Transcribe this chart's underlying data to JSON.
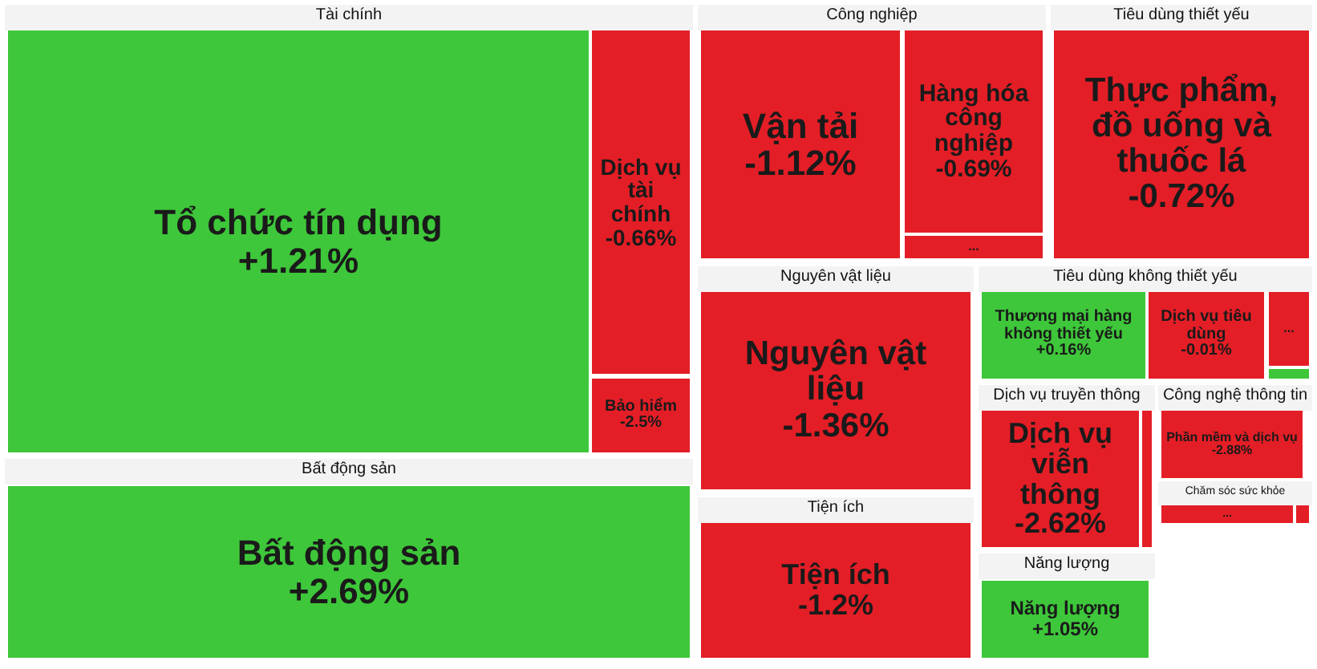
{
  "chart_data": [
    {
      "type": "other",
      "title": "Tài chính",
      "categories": [
        "Tổ chức tín dụng",
        "Dịch vụ tài chính",
        "Bảo hiểm"
      ],
      "values": [
        1.21,
        -0.66,
        -2.5
      ],
      "value_labels": [
        "+1.21%",
        "-0.66%",
        "-2.5%"
      ],
      "colors": [
        "#3ec73a",
        "#e41e26",
        "#e41e26"
      ]
    },
    {
      "type": "other",
      "title": "Bất động sản",
      "categories": [
        "Bất động sản"
      ],
      "values": [
        2.69
      ],
      "value_labels": [
        "+2.69%"
      ],
      "colors": [
        "#3ec73a"
      ]
    },
    {
      "type": "other",
      "title": "Công nghiệp",
      "categories": [
        "Vận tải",
        "Hàng hóa công nghiệp",
        "..."
      ],
      "values": [
        -1.12,
        -0.69,
        null
      ],
      "value_labels": [
        "-1.12%",
        "-0.69%",
        null
      ],
      "colors": [
        "#e41e26",
        "#e41e26",
        "#e41e26"
      ]
    },
    {
      "type": "other",
      "title": "Tiêu dùng thiết yếu",
      "categories": [
        "Thực phẩm, đồ uống và thuốc lá"
      ],
      "values": [
        -0.72
      ],
      "value_labels": [
        "-0.72%"
      ],
      "colors": [
        "#e41e26"
      ]
    },
    {
      "type": "other",
      "title": "Nguyên vật liệu",
      "categories": [
        "Nguyên vật liệu"
      ],
      "values": [
        -1.36
      ],
      "value_labels": [
        "-1.36%"
      ],
      "colors": [
        "#e41e26"
      ]
    },
    {
      "type": "other",
      "title": "Tiện ích",
      "categories": [
        "Tiện ích"
      ],
      "values": [
        -1.2
      ],
      "value_labels": [
        "-1.2%"
      ],
      "colors": [
        "#e41e26"
      ]
    },
    {
      "type": "other",
      "title": "Tiêu dùng không thiết yếu",
      "categories": [
        "Thương mại hàng không thiết yếu",
        "Dịch vụ tiêu dùng",
        "...",
        null
      ],
      "values": [
        0.16,
        -0.01,
        null,
        null
      ],
      "value_labels": [
        "+0.16%",
        "-0.01%",
        null,
        null
      ],
      "colors": [
        "#3ec73a",
        "#e41e26",
        "#e41e26",
        "#3ec73a"
      ]
    },
    {
      "type": "other",
      "title": "Dịch vụ truyền thông",
      "categories": [
        "Dịch vụ viễn thông",
        null
      ],
      "values": [
        -2.62,
        null
      ],
      "value_labels": [
        "-2.62%",
        null
      ],
      "colors": [
        "#e41e26",
        "#e41e26"
      ]
    },
    {
      "type": "other",
      "title": "Công nghệ thông tin",
      "categories": [
        "Phần mềm và dịch vụ"
      ],
      "values": [
        -2.88
      ],
      "value_labels": [
        "-2.88%"
      ],
      "colors": [
        "#e41e26"
      ]
    },
    {
      "type": "other",
      "title": "Chăm sóc sức khỏe",
      "categories": [
        "...",
        null
      ],
      "values": [
        null,
        null
      ],
      "value_labels": [
        null,
        null
      ],
      "colors": [
        "#e41e26",
        "#e41e26"
      ]
    },
    {
      "type": "other",
      "title": "Năng lượng",
      "categories": [
        "Năng lượng"
      ],
      "values": [
        1.05
      ],
      "value_labels": [
        "+1.05%"
      ],
      "colors": [
        "#3ec73a"
      ]
    }
  ]
}
